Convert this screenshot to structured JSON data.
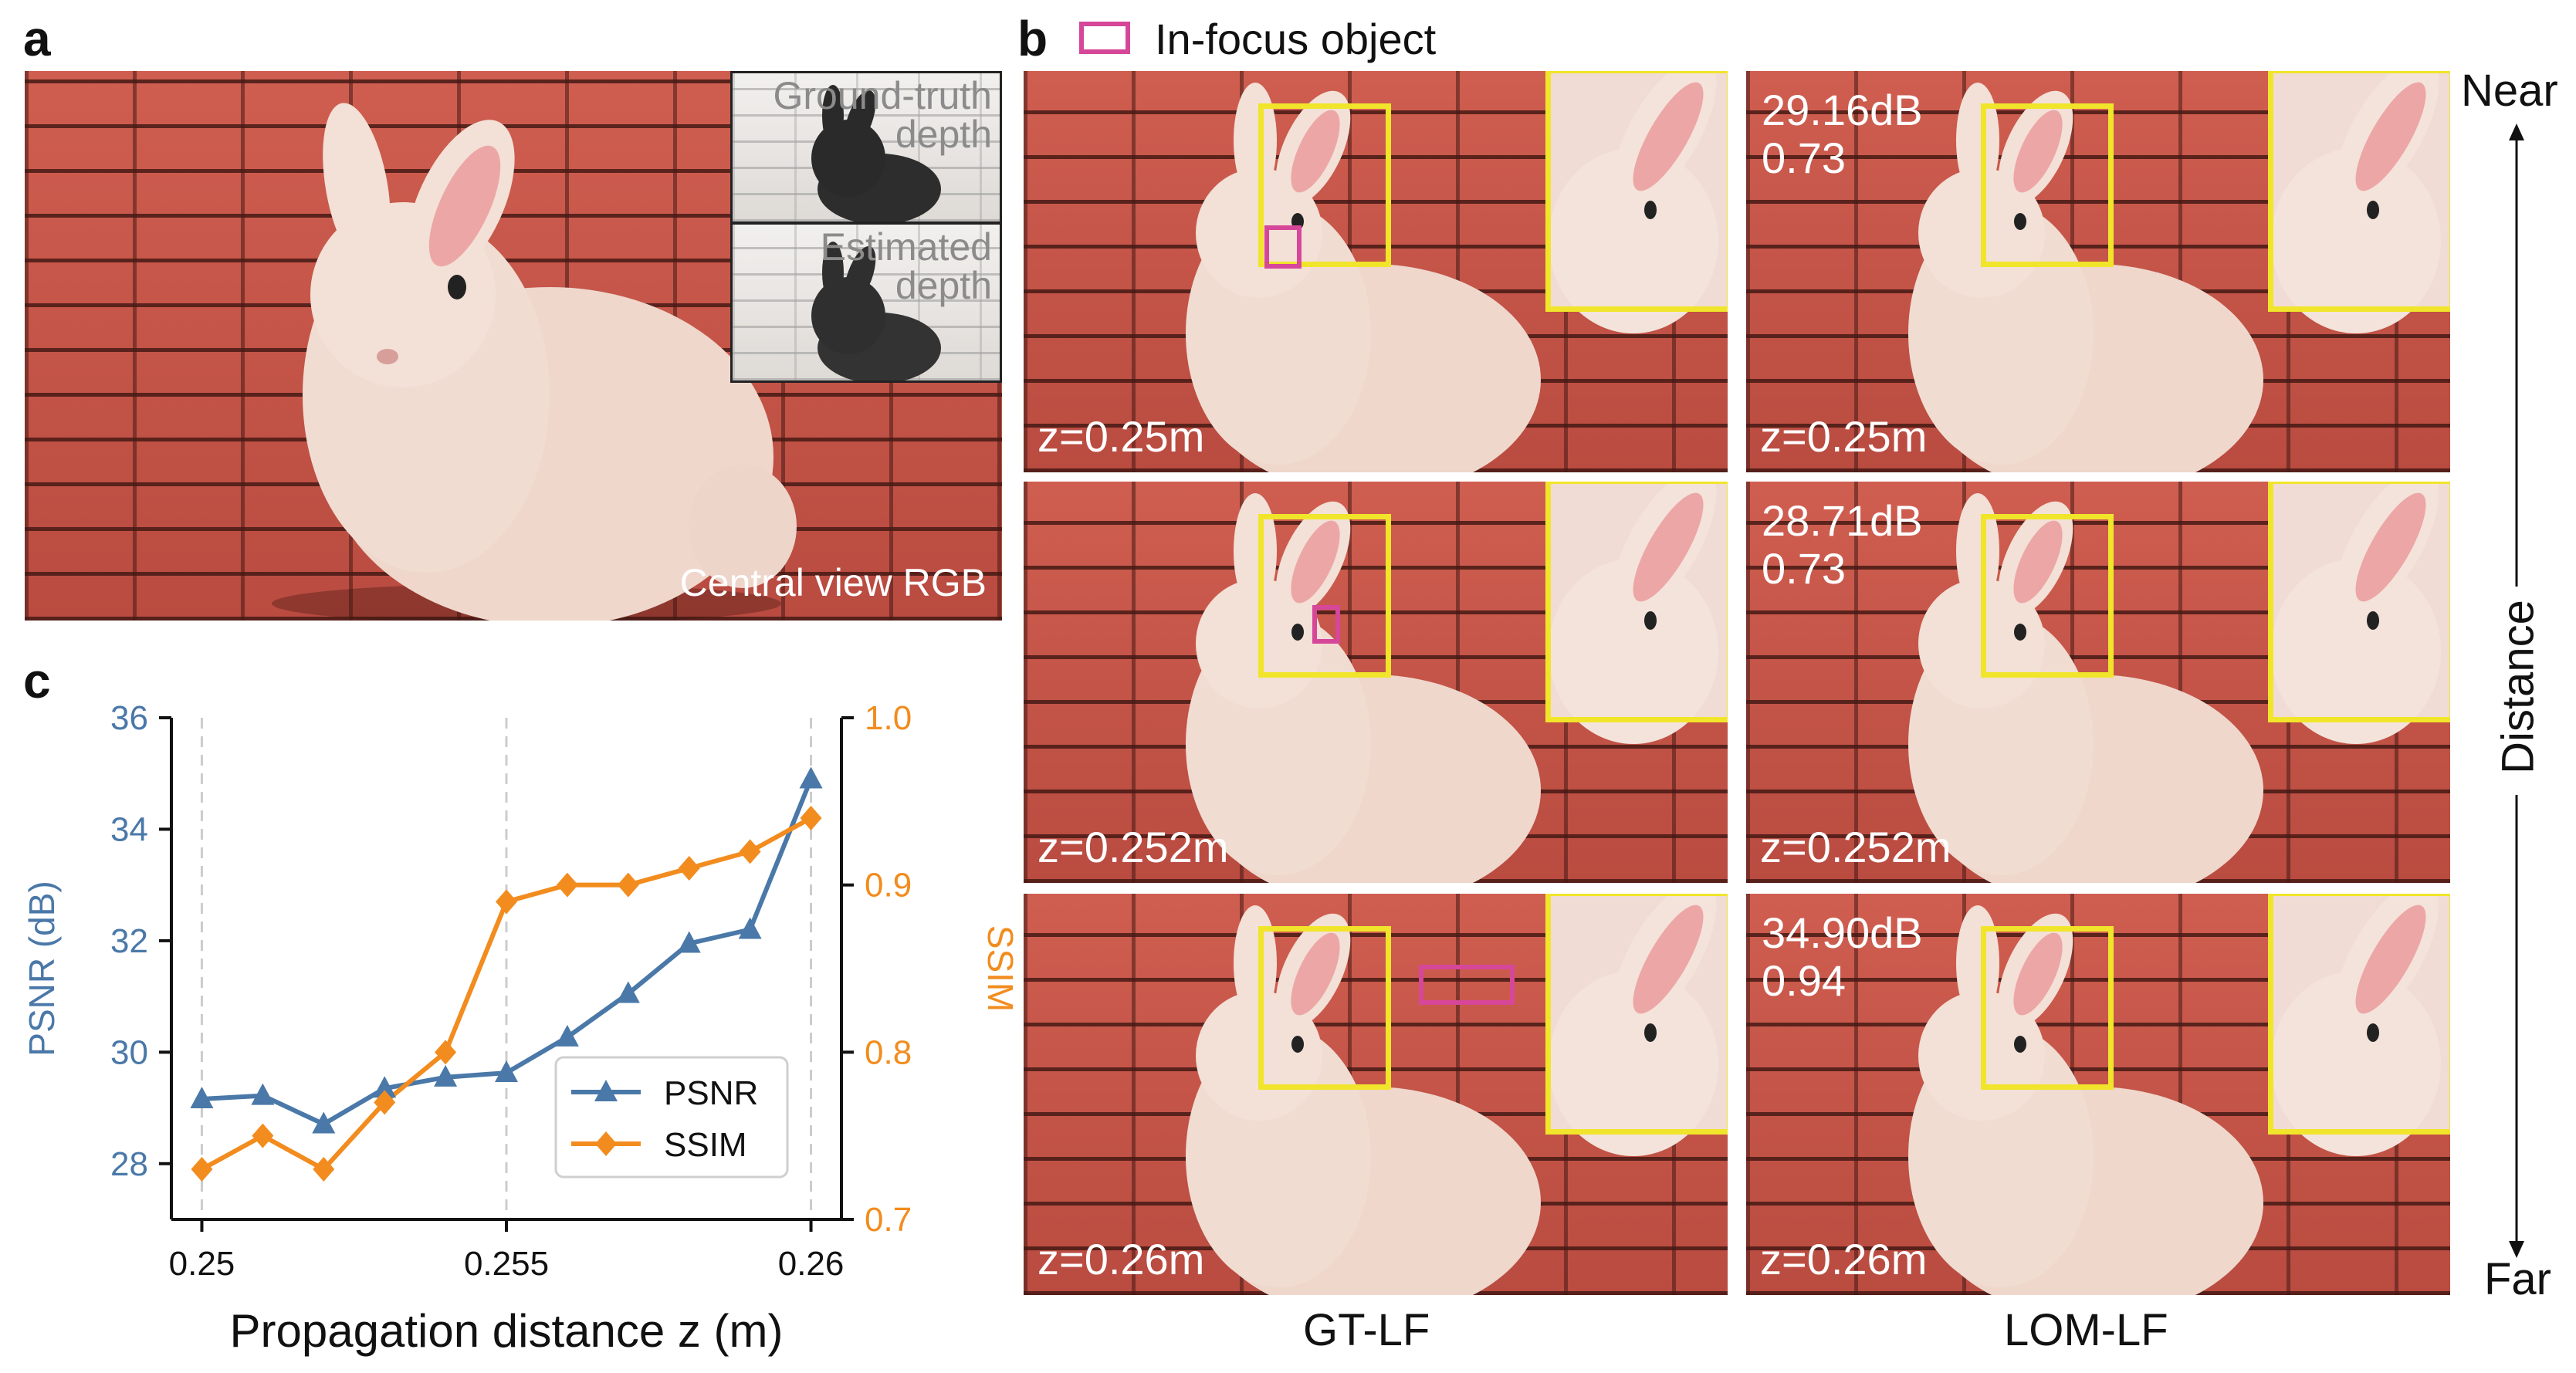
{
  "panels": {
    "a": "a",
    "b": "b",
    "c": "c"
  },
  "panel_a": {
    "caption": "Central view RGB",
    "inset_top": "Ground-truth depth",
    "inset_top_line1": "Ground-truth",
    "inset_top_line2": "depth",
    "inset_bottom_line1": "Estimated",
    "inset_bottom_line2": "depth"
  },
  "panel_b": {
    "legend": "In-focus object",
    "columns": [
      "GT-LF",
      "LOM-LF"
    ],
    "rows": [
      {
        "z": "z=0.25m",
        "psnr": "29.16dB",
        "ssim": "0.73"
      },
      {
        "z": "z=0.252m",
        "psnr": "28.71dB",
        "ssim": "0.73"
      },
      {
        "z": "z=0.26m",
        "psnr": "34.90dB",
        "ssim": "0.94"
      }
    ],
    "near": "Near",
    "far": "Far",
    "distance": "Distance"
  },
  "colors": {
    "psnr": "#4a78a8",
    "ssim": "#f28c1e",
    "highlight": "#f1e52b",
    "in_focus": "#d6479a",
    "brick": "#c9574a"
  },
  "chart_data": {
    "type": "line",
    "xlabel": "Propagation distance z (m)",
    "ylabel_left": "PSNR (dB)",
    "ylabel_right": "SSIM",
    "x_ticks": [
      "0.25",
      "0.255",
      "0.26"
    ],
    "x_tick_values": [
      0.25,
      0.255,
      0.26
    ],
    "xlim": [
      0.2495,
      0.2605
    ],
    "ylim_left": [
      27,
      36
    ],
    "ylim_right": [
      0.7,
      1.0
    ],
    "y_ticks_left": [
      "28",
      "30",
      "32",
      "34",
      "36"
    ],
    "y_tick_values_left": [
      28,
      30,
      32,
      34,
      36
    ],
    "y_ticks_right": [
      "0.7",
      "0.8",
      "0.9",
      "1.0"
    ],
    "y_tick_values_right": [
      0.7,
      0.8,
      0.9,
      1.0
    ],
    "x": [
      0.25,
      0.251,
      0.252,
      0.253,
      0.254,
      0.255,
      0.256,
      0.257,
      0.258,
      0.259,
      0.26
    ],
    "series": [
      {
        "name": "PSNR",
        "axis": "left",
        "marker": "triangle",
        "values": [
          29.16,
          29.22,
          28.71,
          29.35,
          29.55,
          29.63,
          30.27,
          31.05,
          31.95,
          32.2,
          34.9
        ]
      },
      {
        "name": "SSIM",
        "axis": "right",
        "marker": "diamond",
        "values": [
          0.73,
          0.75,
          0.73,
          0.77,
          0.8,
          0.89,
          0.9,
          0.9,
          0.91,
          0.92,
          0.94
        ]
      }
    ],
    "grid": "vertical-dashed-at-ticks",
    "legend_position": "lower-right"
  }
}
